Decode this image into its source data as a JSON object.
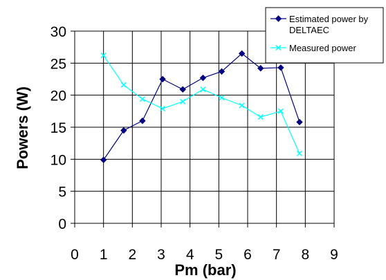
{
  "chart_data": {
    "type": "line",
    "xlabel": "Pm (bar)",
    "ylabel": "Powers  (W)",
    "xlim": [
      0,
      9
    ],
    "ylim": [
      0,
      30
    ],
    "x_ticks": [
      "0",
      "1",
      "2",
      "3",
      "4",
      "5",
      "6",
      "7",
      "8",
      "9"
    ],
    "y_ticks": [
      "0",
      "5",
      "10",
      "15",
      "20",
      "25",
      "30"
    ],
    "grid": "horizontal and vertical",
    "legend_position": "top-right",
    "series": [
      {
        "name": "Estimated power by DELTAEC",
        "legend_lines": [
          "Estimated power by",
          "DELTAEC"
        ],
        "color": "#000080",
        "marker": "diamond",
        "x": [
          1.0,
          1.7,
          2.35,
          3.05,
          3.75,
          4.45,
          5.1,
          5.8,
          6.45,
          7.15,
          7.8
        ],
        "y": [
          9.9,
          14.5,
          16.0,
          22.5,
          20.9,
          22.7,
          23.7,
          26.5,
          24.2,
          24.3,
          15.8
        ]
      },
      {
        "name": "Measured power",
        "legend_lines": [
          "Measured power"
        ],
        "color": "#00FFFF",
        "marker": "x",
        "x": [
          1.0,
          1.7,
          2.35,
          3.05,
          3.75,
          4.45,
          5.1,
          5.8,
          6.45,
          7.15,
          7.8
        ],
        "y": [
          26.2,
          21.6,
          19.4,
          17.9,
          19.0,
          20.9,
          19.6,
          18.4,
          16.6,
          17.5,
          10.9
        ]
      }
    ]
  }
}
